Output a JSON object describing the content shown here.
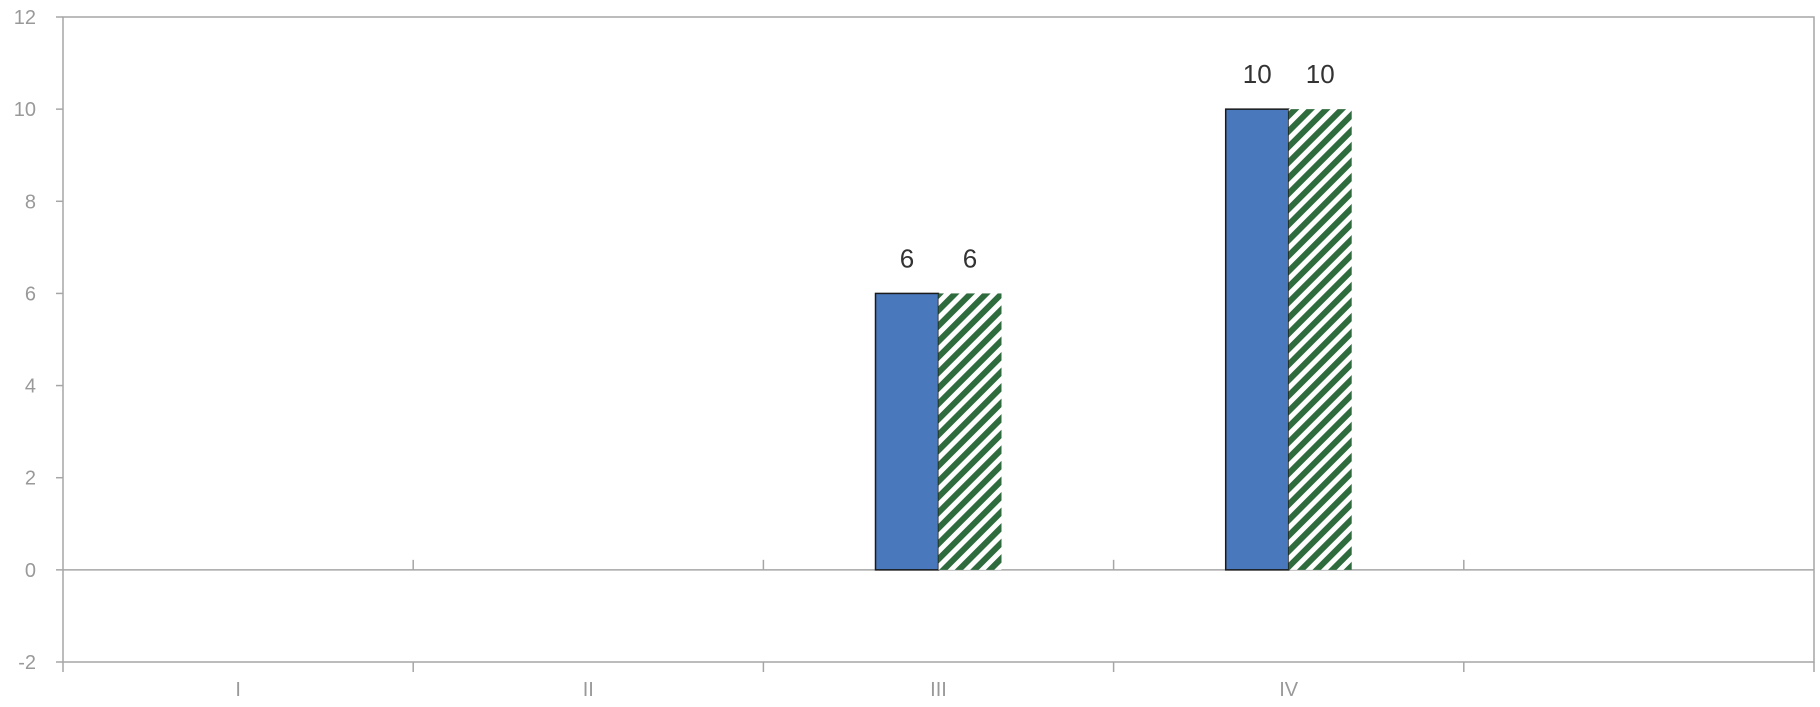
{
  "chart_data": {
    "type": "bar",
    "categories": [
      "I",
      "II",
      "III",
      "IV"
    ],
    "series": [
      {
        "values": [
          0,
          0,
          6,
          10
        ],
        "color": "#4a78bd",
        "border_color": "#1a1a1a",
        "fill_style": "solid",
        "data_labels": [
          "",
          "",
          "6",
          "10"
        ]
      },
      {
        "values": [
          0,
          0,
          6,
          10
        ],
        "color": "#2e6b3d",
        "fill_style": "diagonal-hatch",
        "data_labels": [
          "",
          "",
          "6",
          "10"
        ]
      }
    ],
    "y_ticks": [
      "-2",
      "0",
      "2",
      "4",
      "6",
      "8",
      "10",
      "12"
    ],
    "ylim": [
      -2,
      12
    ],
    "title": "",
    "xlabel": "",
    "ylabel": "",
    "grid": false,
    "legend": "none",
    "axis_color": "#a6a6a6",
    "tick_label_color": "#999999",
    "data_label_color": "#333333"
  }
}
